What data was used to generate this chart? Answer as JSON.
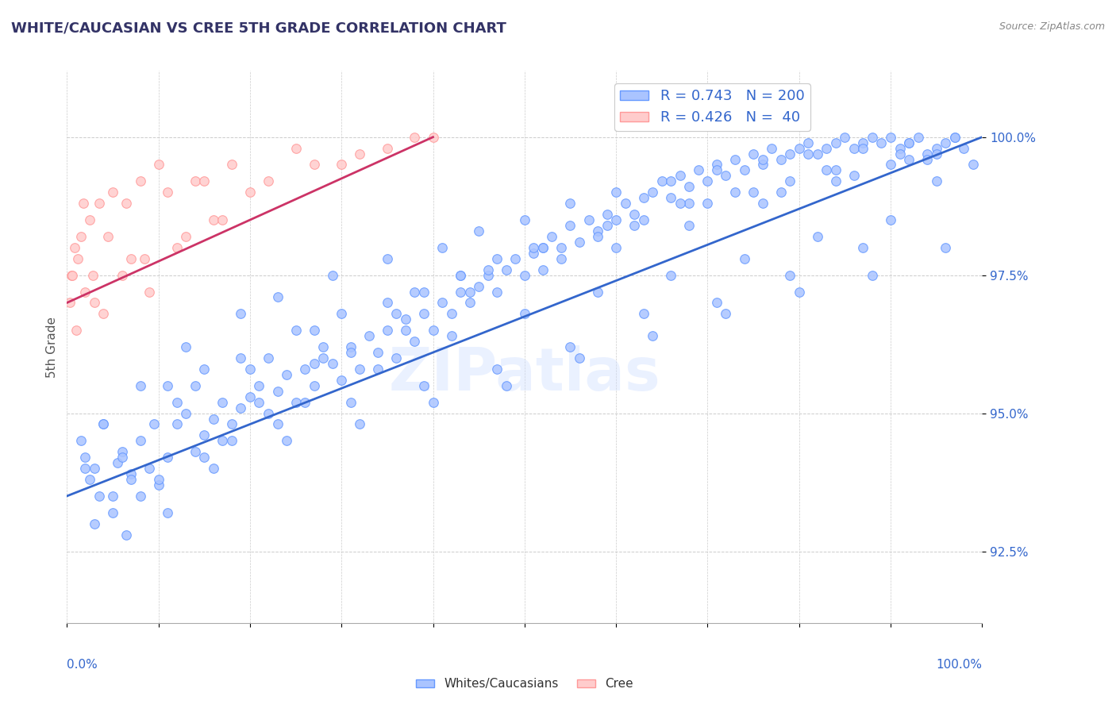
{
  "title": "WHITE/CAUCASIAN VS CREE 5TH GRADE CORRELATION CHART",
  "source": "Source: ZipAtlas.com",
  "ylabel": "5th Grade",
  "yaxis_values": [
    92.5,
    95.0,
    97.5,
    100.0
  ],
  "xlim": [
    0.0,
    100.0
  ],
  "ylim": [
    91.2,
    101.2
  ],
  "blue_R": 0.743,
  "blue_N": 200,
  "pink_R": 0.426,
  "pink_N": 40,
  "blue_color": "#6699ff",
  "blue_fill": "#aac4ff",
  "pink_color": "#ff9999",
  "pink_fill": "#ffcccc",
  "trend_blue": "#3366cc",
  "trend_pink": "#cc3366",
  "watermark": "ZIPatlas",
  "title_color": "#333366",
  "axis_label_color": "#3366cc",
  "legend_R_N_color": "#3366cc",
  "blue_scatter_x": [
    1.5,
    2.0,
    2.5,
    3.0,
    3.5,
    4.0,
    5.0,
    5.5,
    6.0,
    7.0,
    8.0,
    9.0,
    10.0,
    11.0,
    12.0,
    13.0,
    14.0,
    15.0,
    16.0,
    17.0,
    18.0,
    19.0,
    20.0,
    21.0,
    22.0,
    23.0,
    24.0,
    25.0,
    26.0,
    27.0,
    28.0,
    29.0,
    30.0,
    31.0,
    32.0,
    33.0,
    34.0,
    35.0,
    36.0,
    37.0,
    38.0,
    39.0,
    40.0,
    41.0,
    42.0,
    43.0,
    44.0,
    45.0,
    46.0,
    47.0,
    48.0,
    49.0,
    50.0,
    51.0,
    52.0,
    53.0,
    54.0,
    55.0,
    56.0,
    57.0,
    58.0,
    59.0,
    60.0,
    61.0,
    62.0,
    63.0,
    64.0,
    65.0,
    66.0,
    67.0,
    68.0,
    69.0,
    70.0,
    71.0,
    72.0,
    73.0,
    74.0,
    75.0,
    76.0,
    77.0,
    78.0,
    79.0,
    80.0,
    81.0,
    82.0,
    83.0,
    84.0,
    85.0,
    86.0,
    87.0,
    88.0,
    89.0,
    90.0,
    91.0,
    92.0,
    93.0,
    94.0,
    95.0,
    96.0,
    97.0,
    3.0,
    5.0,
    6.5,
    8.0,
    9.5,
    11.0,
    13.0,
    15.0,
    17.0,
    19.0,
    21.0,
    23.0,
    25.0,
    27.0,
    29.0,
    31.0,
    35.0,
    37.0,
    39.0,
    41.0,
    43.0,
    45.0,
    47.0,
    50.0,
    52.0,
    55.0,
    58.0,
    60.0,
    63.0,
    66.0,
    68.0,
    71.0,
    73.0,
    76.0,
    79.0,
    81.0,
    84.0,
    87.0,
    90.0,
    92.0,
    95.0,
    97.0,
    6.0,
    10.0,
    14.0,
    18.0,
    22.0,
    26.0,
    30.0,
    34.0,
    38.0,
    42.0,
    46.0,
    50.0,
    54.0,
    58.0,
    62.0,
    66.0,
    70.0,
    74.0,
    78.0,
    82.0,
    86.0,
    90.0,
    94.0,
    98.0,
    4.0,
    8.0,
    12.0,
    16.0,
    20.0,
    24.0,
    28.0,
    32.0,
    36.0,
    40.0,
    44.0,
    48.0,
    52.0,
    56.0,
    60.0,
    64.0,
    68.0,
    72.0,
    76.0,
    80.0,
    84.0,
    88.0,
    92.0,
    96.0,
    2.0,
    7.0,
    11.0,
    15.0,
    19.0,
    23.0,
    27.0,
    31.0,
    35.0,
    39.0,
    43.0,
    47.0,
    51.0,
    55.0,
    59.0,
    63.0,
    67.0,
    71.0,
    75.0,
    79.0,
    83.0,
    87.0,
    91.0,
    95.0,
    99.0
  ],
  "blue_scatter_y": [
    94.5,
    94.2,
    93.8,
    94.0,
    93.5,
    94.8,
    93.2,
    94.1,
    94.3,
    93.9,
    94.5,
    94.0,
    93.7,
    94.2,
    94.8,
    95.0,
    94.3,
    94.6,
    94.9,
    95.2,
    94.8,
    95.1,
    95.3,
    95.5,
    95.0,
    95.4,
    95.7,
    95.2,
    95.8,
    95.5,
    96.0,
    95.9,
    95.6,
    96.2,
    95.8,
    96.4,
    96.1,
    96.5,
    96.0,
    96.7,
    96.3,
    96.8,
    96.5,
    97.0,
    96.8,
    97.2,
    97.0,
    97.3,
    97.5,
    97.2,
    97.6,
    97.8,
    97.5,
    97.9,
    98.0,
    98.2,
    97.8,
    98.4,
    98.1,
    98.5,
    98.3,
    98.6,
    98.5,
    98.8,
    98.6,
    98.9,
    99.0,
    99.2,
    98.9,
    99.3,
    99.1,
    99.4,
    99.2,
    99.5,
    99.3,
    99.6,
    99.4,
    99.7,
    99.5,
    99.8,
    99.6,
    99.7,
    99.8,
    99.9,
    99.7,
    99.8,
    99.9,
    100.0,
    99.8,
    99.9,
    100.0,
    99.9,
    100.0,
    99.8,
    99.9,
    100.0,
    99.7,
    99.8,
    99.9,
    100.0,
    93.0,
    93.5,
    92.8,
    95.5,
    94.8,
    93.2,
    96.2,
    95.8,
    94.5,
    96.8,
    95.2,
    97.1,
    96.5,
    95.9,
    97.5,
    96.1,
    97.8,
    96.5,
    97.2,
    98.0,
    97.5,
    98.3,
    97.8,
    98.5,
    98.0,
    98.8,
    98.2,
    99.0,
    98.5,
    99.2,
    98.8,
    99.4,
    99.0,
    99.6,
    99.2,
    99.7,
    99.4,
    99.8,
    99.5,
    99.9,
    99.7,
    100.0,
    94.2,
    93.8,
    95.5,
    94.5,
    96.0,
    95.2,
    96.8,
    95.8,
    97.2,
    96.4,
    97.6,
    96.8,
    98.0,
    97.2,
    98.4,
    97.5,
    98.8,
    97.8,
    99.0,
    98.2,
    99.3,
    98.5,
    99.6,
    99.8,
    94.8,
    93.5,
    95.2,
    94.0,
    95.8,
    94.5,
    96.2,
    94.8,
    96.8,
    95.2,
    97.2,
    95.5,
    97.6,
    96.0,
    98.0,
    96.4,
    98.4,
    96.8,
    98.8,
    97.2,
    99.2,
    97.5,
    99.6,
    98.0,
    94.0,
    93.8,
    95.5,
    94.2,
    96.0,
    94.8,
    96.5,
    95.2,
    97.0,
    95.5,
    97.5,
    95.8,
    98.0,
    96.2,
    98.4,
    96.8,
    98.8,
    97.0,
    99.0,
    97.5,
    99.4,
    98.0,
    99.7,
    99.2,
    99.5
  ],
  "pink_scatter_x": [
    0.5,
    0.8,
    1.0,
    1.2,
    1.5,
    2.0,
    2.5,
    3.0,
    3.5,
    4.0,
    5.0,
    6.0,
    7.0,
    8.0,
    9.0,
    10.0,
    12.0,
    14.0,
    16.0,
    18.0,
    20.0,
    25.0,
    30.0,
    35.0,
    40.0,
    0.3,
    0.6,
    1.8,
    2.8,
    4.5,
    6.5,
    8.5,
    11.0,
    13.0,
    15.0,
    17.0,
    22.0,
    27.0,
    32.0,
    38.0
  ],
  "pink_scatter_y": [
    97.5,
    98.0,
    96.5,
    97.8,
    98.2,
    97.2,
    98.5,
    97.0,
    98.8,
    96.8,
    99.0,
    97.5,
    97.8,
    99.2,
    97.2,
    99.5,
    98.0,
    99.2,
    98.5,
    99.5,
    99.0,
    99.8,
    99.5,
    99.8,
    100.0,
    97.0,
    97.5,
    98.8,
    97.5,
    98.2,
    98.8,
    97.8,
    99.0,
    98.2,
    99.2,
    98.5,
    99.2,
    99.5,
    99.7,
    100.0
  ],
  "blue_trend_x": [
    0.0,
    100.0
  ],
  "blue_trend_y": [
    93.5,
    100.0
  ],
  "pink_trend_x": [
    0.0,
    40.0
  ],
  "pink_trend_y": [
    97.0,
    100.0
  ]
}
